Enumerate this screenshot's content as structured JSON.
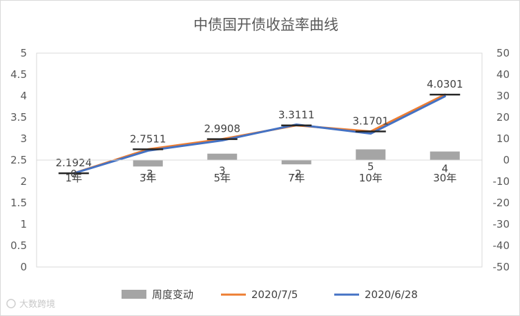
{
  "chart_data": {
    "type": "bar+line",
    "title": "中债国开债收益率曲线",
    "categories": [
      "1年",
      "3年",
      "5年",
      "7年",
      "10年",
      "30年"
    ],
    "y_left": {
      "ylim": [
        0,
        5
      ],
      "ticks": [
        "0",
        "0.5",
        "1",
        "1.5",
        "2",
        "2.5",
        "3",
        "3.5",
        "4",
        "4.5",
        "5"
      ]
    },
    "y_right": {
      "ylim": [
        -50,
        50
      ],
      "ticks": [
        "-50",
        "-40",
        "-30",
        "-20",
        "-10",
        "0",
        "10",
        "20",
        "30",
        "40",
        "50"
      ]
    },
    "series": [
      {
        "name": "周度变动",
        "kind": "bar",
        "axis": "right",
        "color": "#a5a5a5",
        "values": [
          0,
          -3,
          3,
          -2,
          5,
          4
        ],
        "labels": [
          "0",
          "-3",
          "3",
          "-2",
          "5",
          "4"
        ]
      },
      {
        "name": "2020/7/5",
        "kind": "line",
        "axis": "left",
        "color": "#ed7d31",
        "values": [
          2.1924,
          2.7511,
          2.9908,
          3.3111,
          3.1701,
          4.0301
        ],
        "labels": [
          "2.1924",
          "2.7511",
          "2.9908",
          "3.3111",
          "3.1701",
          "4.0301"
        ]
      },
      {
        "name": "2020/6/28",
        "kind": "line",
        "axis": "left",
        "color": "#4472c4",
        "values": [
          2.19,
          2.72,
          2.96,
          3.33,
          3.12,
          3.99
        ]
      }
    ],
    "grid": false,
    "legend": "bottom"
  },
  "watermark": "大数跨境"
}
